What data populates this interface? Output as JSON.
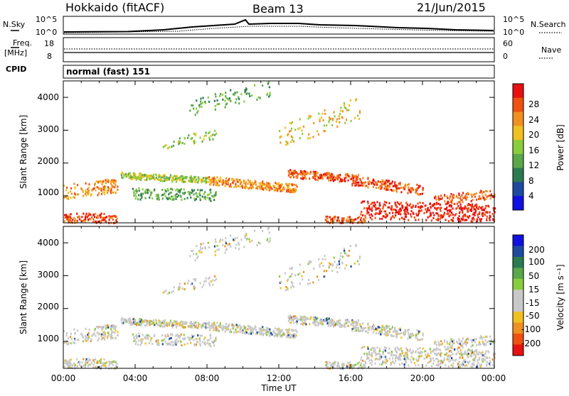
{
  "header": {
    "station": "Hokkaido (fitACF)",
    "beam": "Beam 13",
    "date": "21/Jun/2015"
  },
  "top_panel": {
    "left_label": "N.Sky",
    "right_label": "N.Search",
    "left_ticks": [
      "10^5",
      "10^0"
    ],
    "right_ticks": [
      "10^5",
      "10^0"
    ]
  },
  "freq_panel": {
    "left_label_1": "Freq.",
    "left_label_2": "[MHz]",
    "right_label": "Nave",
    "left_ticks": [
      "18",
      "8"
    ],
    "right_ticks": [
      "60",
      "0"
    ]
  },
  "cpid_panel": {
    "label": "CPID",
    "value": "normal (fast) 151"
  },
  "colors": {
    "power_scale": [
      "#1010e0",
      "#1e4aa0",
      "#2c7a50",
      "#5aa84a",
      "#8acd3a",
      "#f0c020",
      "#f09020",
      "#f05010",
      "#e81010"
    ],
    "velocity_scale": [
      "#e81010",
      "#f05010",
      "#f09020",
      "#f0c020",
      "#c8c8c8",
      "#c8c8c8",
      "#8acd3a",
      "#5aa84a",
      "#2c7a50",
      "#1e4aa0",
      "#1010e0"
    ]
  },
  "chart_data": [
    {
      "type": "heatmap",
      "title": "Power",
      "ylabel": "Slant Range [km]",
      "xlabel": "Time UT",
      "ylim": [
        180,
        4500
      ],
      "xlim": [
        "00:00",
        "00:00"
      ],
      "x_ticks": [
        "00:00",
        "04:00",
        "08:00",
        "12:00",
        "16:00",
        "20:00",
        "00:00"
      ],
      "y_ticks": [
        "1000",
        "2000",
        "3000",
        "4000"
      ],
      "colorbar_label": "Power [dB]",
      "colorbar_ticks": [
        "4",
        "8",
        "12",
        "16",
        "20",
        "24",
        "28"
      ]
    },
    {
      "type": "heatmap",
      "title": "Velocity",
      "ylabel": "Slant Range [km]",
      "xlabel": "Time UT",
      "ylim": [
        180,
        4500
      ],
      "xlim": [
        "00:00",
        "00:00"
      ],
      "x_ticks": [
        "00:00",
        "04:00",
        "08:00",
        "12:00",
        "16:00",
        "20:00",
        "00:00"
      ],
      "y_ticks": [
        "1000",
        "2000",
        "3000",
        "4000"
      ],
      "colorbar_label": "Velocity [m s⁻¹]",
      "colorbar_ticks": [
        "200",
        "100",
        "50",
        "15",
        "-15",
        "-50",
        "-100",
        "-200"
      ]
    }
  ]
}
